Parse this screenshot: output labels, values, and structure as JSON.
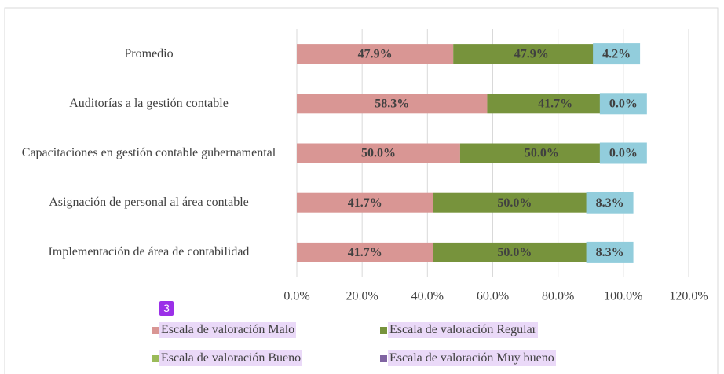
{
  "chart_data": {
    "type": "stacked_barh",
    "categories": [
      "Promedio",
      "Auditorías a la gestión contable",
      "Capacitaciones en gestión contable gubernamental",
      "Asignación de personal al área contable",
      "Implementación de área de contabilidad"
    ],
    "series": [
      {
        "name": "Escala de valoración Malo",
        "color": "#d99694",
        "values": [
          47.9,
          58.3,
          50.0,
          41.7,
          41.7
        ],
        "value_labels": [
          "47.9%",
          "58.3%",
          "50.0%",
          "41.7%",
          "41.7%"
        ]
      },
      {
        "name": "Escala de valoración Regular",
        "color": "#77933c",
        "values": [
          47.9,
          41.7,
          50.0,
          50.0,
          50.0
        ],
        "value_labels": [
          "47.9%",
          "41.7%",
          "50.0%",
          "50.0%",
          "50.0%"
        ]
      },
      {
        "name": "Escala de valoración Bueno",
        "color": "#9bbb59",
        "label_background": "#92cddc",
        "values": [
          4.2,
          0.0,
          0.0,
          8.3,
          8.3
        ],
        "value_labels": [
          "4.2%",
          "0.0%",
          "0.0%",
          "8.3%",
          "8.3%"
        ]
      },
      {
        "name": "Escala de valoración Muy bueno",
        "color": "#8064a2"
      }
    ],
    "xlim": [
      0,
      120
    ],
    "xticks": [
      {
        "value": 0,
        "label": "0.0%"
      },
      {
        "value": 20,
        "label": "20.0%"
      },
      {
        "value": 40,
        "label": "40.0%"
      },
      {
        "value": 60,
        "label": "60.0%"
      },
      {
        "value": 80,
        "label": "80.0%"
      },
      {
        "value": 100,
        "label": "100.0%"
      },
      {
        "value": 120,
        "label": "120.0%"
      }
    ],
    "grid": true,
    "badge": "3"
  }
}
